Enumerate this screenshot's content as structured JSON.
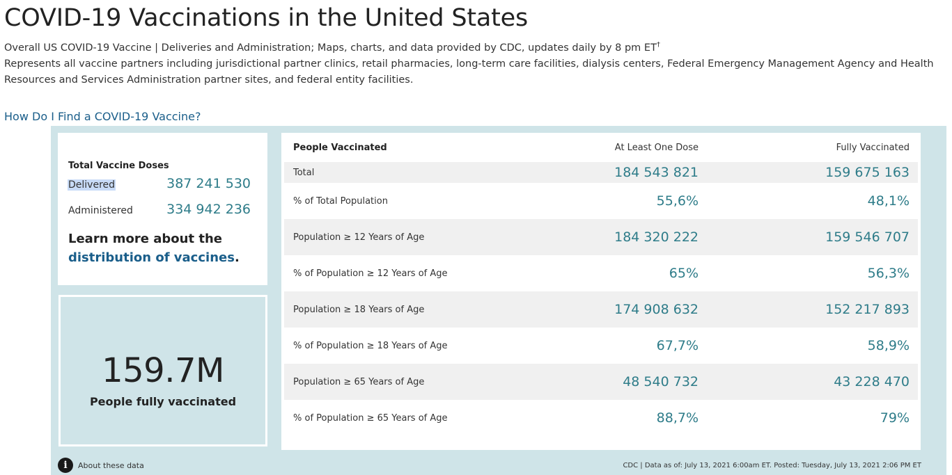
{
  "page": {
    "title": "COVID-19 Vaccinations in the United States",
    "subtitle_line1": "Overall US COVID-19 Vaccine | Deliveries and Administration; Maps, charts, and data provided by CDC, updates daily by 8 pm ET",
    "subtitle_dagger": "†",
    "subtitle_line2": "Represents all vaccine partners including jurisdictional partner clinics, retail pharmacies, long-term care facilities, dialysis centers, Federal Emergency Management Agency and Health Resources and Services Administration partner sites, and federal entity facilities.",
    "find_link": "How Do I Find a COVID-19 Vaccine?"
  },
  "doses": {
    "title": "Total Vaccine Doses",
    "delivered_label": "Delivered",
    "delivered_value": "387 241 530",
    "administered_label": "Administered",
    "administered_value": "334 942 236",
    "learn_text": "Learn more about the",
    "learn_link": "distribution of vaccines",
    "learn_end": "."
  },
  "kpi": {
    "value": "159.7M",
    "label": "People fully vaccinated"
  },
  "people_table": {
    "headers": [
      "People Vaccinated",
      "At Least One Dose",
      "Fully Vaccinated"
    ],
    "rows": [
      [
        "Total",
        "184 543 821",
        "159 675 163"
      ],
      [
        "% of Total Population",
        "55,6%",
        "48,1%"
      ],
      [
        "Population ≥ 12 Years of Age",
        "184 320 222",
        "159 546 707"
      ],
      [
        "% of Population ≥ 12 Years of Age",
        "65%",
        "56,3%"
      ],
      [
        "Population ≥ 18 Years of Age",
        "174 908 632",
        "152 217 893"
      ],
      [
        "% of Population ≥ 18 Years of Age",
        "67,7%",
        "58,9%"
      ],
      [
        "Population ≥ 65 Years of Age",
        "48 540 732",
        "43 228 470"
      ],
      [
        "% of Population ≥ 65 Years of Age",
        "88,7%",
        "79%"
      ]
    ]
  },
  "footer": {
    "about_label": "About these data",
    "info_glyph": "i",
    "note": "CDC | Data as of: July 13, 2021 6:00am ET. Posted: Tuesday, July 13, 2021 2:06 PM ET"
  }
}
